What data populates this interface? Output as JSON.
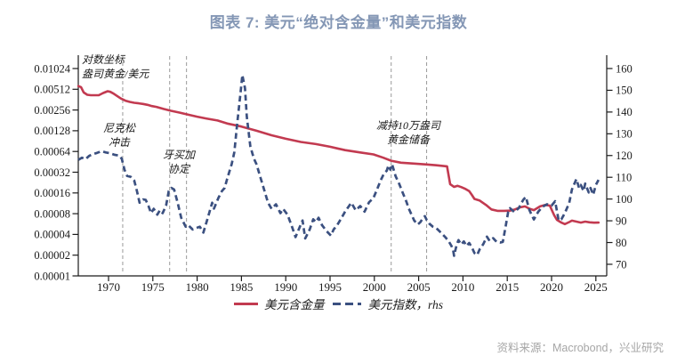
{
  "title": "图表 7: 美元“绝对含金量”和美元指数",
  "source": "资料来源：Macrobond，兴业研究",
  "legend": {
    "gold_content": "美元含金量",
    "usd_index": "美元指数，rhs"
  },
  "annotations": {
    "log_note": {
      "line1": "对数坐标",
      "line2": "盎司黄金/美元"
    },
    "nixon": {
      "line1": "尼克松",
      "line2": "冲击"
    },
    "jamaica": {
      "line1": "牙买加",
      "line2": "协定"
    },
    "gold_sale": {
      "line1": "减持10万盎司",
      "line2": "黄金储备"
    }
  },
  "colors": {
    "gold_content": "#c23a50",
    "usd_index": "#3b5080",
    "event_line": "#999999",
    "title": "#8497b5",
    "source": "#a6a6a6",
    "axis": "#1a1a1a"
  },
  "chart_data": {
    "type": "line",
    "title": "图表 7: 美元“绝对含金量”和美元指数",
    "x_axis": {
      "range": [
        1966.6,
        2026.2
      ],
      "ticks": [
        1970,
        1975,
        1980,
        1985,
        1990,
        1995,
        2000,
        2005,
        2010,
        2015,
        2020,
        2025
      ]
    },
    "left_axis": {
      "label": "盎司黄金/美元",
      "scale": "log2",
      "tick_labels": [
        "0.01024",
        "0.00512",
        "0.00256",
        "0.00128",
        "0.00064",
        "0.00032",
        "0.00016",
        "0.00008",
        "0.00004",
        "0.00002",
        "0.00001"
      ]
    },
    "right_axis": {
      "ticks": [
        160,
        150,
        140,
        130,
        120,
        110,
        100,
        90,
        80,
        70
      ]
    },
    "event_lines": [
      {
        "year": 1971.6,
        "label": "尼克松冲击"
      },
      {
        "year": 1976.9,
        "label": "牙买加协定"
      },
      {
        "year": 1978.8,
        "label": "牙买加协定"
      },
      {
        "year": 2001.9,
        "label": "减持10万盎司黄金储备"
      },
      {
        "year": 2005.9,
        "label": "减持10万盎司黄金储备"
      }
    ],
    "series": [
      {
        "name": "美元含金量",
        "axis": "left",
        "style": "solid",
        "color": "#c23a50",
        "points": [
          [
            1966.6,
            0.0057
          ],
          [
            1966.9,
            0.0055
          ],
          [
            1967.2,
            0.0046
          ],
          [
            1967.6,
            0.00426
          ],
          [
            1968.0,
            0.0042
          ],
          [
            1968.9,
            0.0042
          ],
          [
            1969.4,
            0.00452
          ],
          [
            1969.9,
            0.0048
          ],
          [
            1970.2,
            0.0047
          ],
          [
            1970.6,
            0.0044
          ],
          [
            1970.9,
            0.00415
          ],
          [
            1971.4,
            0.00376
          ],
          [
            1971.9,
            0.0035
          ],
          [
            1972.4,
            0.00336
          ],
          [
            1972.9,
            0.00326
          ],
          [
            1973.4,
            0.0032
          ],
          [
            1973.9,
            0.00313
          ],
          [
            1974.4,
            0.00304
          ],
          [
            1974.9,
            0.00292
          ],
          [
            1975.4,
            0.00284
          ],
          [
            1976.2,
            0.00265
          ],
          [
            1977.0,
            0.0025
          ],
          [
            1978.0,
            0.00235
          ],
          [
            1978.8,
            0.00222
          ],
          [
            1980.0,
            0.00205
          ],
          [
            1981.0,
            0.00193
          ],
          [
            1982.3,
            0.0018
          ],
          [
            1983.4,
            0.00163
          ],
          [
            1985.0,
            0.00147
          ],
          [
            1986.7,
            0.00128
          ],
          [
            1988.4,
            0.0011
          ],
          [
            1990.0,
            0.00098
          ],
          [
            1991.7,
            0.00088
          ],
          [
            1993.4,
            0.00082
          ],
          [
            1995.0,
            0.00075
          ],
          [
            1996.0,
            0.0007
          ],
          [
            1996.7,
            0.00067
          ],
          [
            1998.4,
            0.00062
          ],
          [
            1999.9,
            0.00058
          ],
          [
            2001.0,
            0.00052
          ],
          [
            2001.9,
            0.00047
          ],
          [
            2003.0,
            0.00044
          ],
          [
            2004.3,
            0.000428
          ],
          [
            2005.9,
            0.000414
          ],
          [
            2007.0,
            0.000403
          ],
          [
            2008.2,
            0.00039
          ],
          [
            2008.55,
            0.000215
          ],
          [
            2009.0,
            0.000196
          ],
          [
            2009.4,
            0.000203
          ],
          [
            2009.8,
            0.000195
          ],
          [
            2010.2,
            0.000185
          ],
          [
            2010.7,
            0.00017
          ],
          [
            2011.0,
            0.00015
          ],
          [
            2011.3,
            0.000131
          ],
          [
            2011.9,
            0.000124
          ],
          [
            2012.6,
            0.000107
          ],
          [
            2013.2,
            9.23e-05
          ],
          [
            2013.9,
            8.81e-05
          ],
          [
            2014.6,
            8.81e-05
          ],
          [
            2015.3,
            8.85e-05
          ],
          [
            2015.9,
            9.25e-05
          ],
          [
            2016.4,
            9.85e-05
          ],
          [
            2017.0,
            0.000102
          ],
          [
            2017.5,
            9.45e-05
          ],
          [
            2018.0,
            9e-05
          ],
          [
            2018.7,
            0.000102
          ],
          [
            2019.3,
            0.000107
          ],
          [
            2019.8,
            0.000105
          ],
          [
            2020.3,
            7.57e-05
          ],
          [
            2020.6,
            6.52e-05
          ],
          [
            2021.1,
            5.94e-05
          ],
          [
            2021.5,
            5.65e-05
          ],
          [
            2022.0,
            6.05e-05
          ],
          [
            2022.3,
            6.35e-05
          ],
          [
            2022.8,
            6.14e-05
          ],
          [
            2023.3,
            5.94e-05
          ],
          [
            2023.8,
            6.14e-05
          ],
          [
            2024.3,
            6e-05
          ],
          [
            2024.8,
            5.92e-05
          ],
          [
            2025.3,
            5.94e-05
          ]
        ]
      },
      {
        "name": "美元指数，rhs",
        "axis": "right",
        "style": "dashed",
        "color": "#3b5080",
        "points": [
          [
            1966.6,
            118.0
          ],
          [
            1967.0,
            119.0
          ],
          [
            1967.4,
            118.3
          ],
          [
            1967.8,
            119.8
          ],
          [
            1968.2,
            120.6
          ],
          [
            1968.7,
            121.2
          ],
          [
            1969.2,
            122.0
          ],
          [
            1969.7,
            121.4
          ],
          [
            1970.2,
            121.0
          ],
          [
            1970.7,
            120.3
          ],
          [
            1971.2,
            120.0
          ],
          [
            1971.5,
            118.5
          ],
          [
            1971.8,
            113.5
          ],
          [
            1972.1,
            110.6
          ],
          [
            1972.5,
            110.2
          ],
          [
            1972.9,
            108.5
          ],
          [
            1973.2,
            103.7
          ],
          [
            1973.5,
            98.3
          ],
          [
            1973.9,
            99.8
          ],
          [
            1974.2,
            99.6
          ],
          [
            1974.5,
            96.9
          ],
          [
            1974.8,
            93.5
          ],
          [
            1975.1,
            95.5
          ],
          [
            1975.5,
            92.8
          ],
          [
            1975.8,
            94.9
          ],
          [
            1976.1,
            93.5
          ],
          [
            1976.5,
            97.0
          ],
          [
            1976.8,
            103.7
          ],
          [
            1977.1,
            105.1
          ],
          [
            1977.4,
            104.4
          ],
          [
            1977.8,
            98.3
          ],
          [
            1978.2,
            91.4
          ],
          [
            1978.7,
            87.3
          ],
          [
            1979.0,
            88.0
          ],
          [
            1979.5,
            86.0
          ],
          [
            1980.0,
            86.8
          ],
          [
            1980.3,
            87.3
          ],
          [
            1980.7,
            84.6
          ],
          [
            1981.2,
            91.4
          ],
          [
            1981.7,
            98.3
          ],
          [
            1981.9,
            95.6
          ],
          [
            1982.4,
            100.5
          ],
          [
            1982.8,
            103.7
          ],
          [
            1983.1,
            105.1
          ],
          [
            1983.4,
            109.5
          ],
          [
            1983.9,
            116.0
          ],
          [
            1984.2,
            121.5
          ],
          [
            1984.5,
            133.8
          ],
          [
            1984.9,
            148.9
          ],
          [
            1985.1,
            157.0
          ],
          [
            1985.4,
            150.9
          ],
          [
            1985.6,
            138.0
          ],
          [
            1986.0,
            124.2
          ],
          [
            1986.4,
            118.7
          ],
          [
            1986.7,
            116.0
          ],
          [
            1987.2,
            109.2
          ],
          [
            1987.7,
            102.4
          ],
          [
            1988.0,
            98.3
          ],
          [
            1988.4,
            95.5
          ],
          [
            1988.9,
            97.6
          ],
          [
            1989.4,
            93.5
          ],
          [
            1989.7,
            95.5
          ],
          [
            1990.2,
            92.8
          ],
          [
            1990.7,
            87.3
          ],
          [
            1991.1,
            82.5
          ],
          [
            1991.6,
            87.3
          ],
          [
            1991.9,
            90.1
          ],
          [
            1992.2,
            81.9
          ],
          [
            1992.7,
            86.0
          ],
          [
            1993.1,
            90.7
          ],
          [
            1993.4,
            89.4
          ],
          [
            1993.7,
            91.4
          ],
          [
            1994.1,
            88.0
          ],
          [
            1994.6,
            85.3
          ],
          [
            1995.1,
            83.2
          ],
          [
            1995.4,
            86.0
          ],
          [
            1995.8,
            88.0
          ],
          [
            1996.2,
            90.7
          ],
          [
            1996.7,
            94.2
          ],
          [
            1997.4,
            98.3
          ],
          [
            1997.9,
            94.8
          ],
          [
            1998.4,
            96.8
          ],
          [
            1998.9,
            94.2
          ],
          [
            1999.4,
            98.5
          ],
          [
            1999.9,
            100.5
          ],
          [
            2000.3,
            104.4
          ],
          [
            2000.7,
            108.5
          ],
          [
            2001.1,
            111.9
          ],
          [
            2001.4,
            113.0
          ],
          [
            2001.6,
            115.5
          ],
          [
            2001.8,
            113.5
          ],
          [
            2002.0,
            116.0
          ],
          [
            2002.4,
            110.5
          ],
          [
            2002.8,
            107.0
          ],
          [
            2003.2,
            102.9
          ],
          [
            2003.6,
            98.9
          ],
          [
            2003.9,
            95.5
          ],
          [
            2004.2,
            92.8
          ],
          [
            2004.5,
            90.1
          ],
          [
            2004.9,
            88.3
          ],
          [
            2005.2,
            89.4
          ],
          [
            2005.5,
            91.4
          ],
          [
            2005.7,
            92.1
          ],
          [
            2005.9,
            90.4
          ],
          [
            2006.2,
            88.7
          ],
          [
            2006.6,
            87.3
          ],
          [
            2007.0,
            86.6
          ],
          [
            2007.5,
            84.6
          ],
          [
            2008.0,
            82.5
          ],
          [
            2008.4,
            80.5
          ],
          [
            2008.7,
            78.4
          ],
          [
            2008.9,
            76.4
          ],
          [
            2009.0,
            73.9
          ],
          [
            2009.3,
            79.1
          ],
          [
            2009.5,
            81.1
          ],
          [
            2009.8,
            79.1
          ],
          [
            2010.1,
            80.5
          ],
          [
            2010.4,
            78.4
          ],
          [
            2010.7,
            79.8
          ],
          [
            2011.0,
            77.8
          ],
          [
            2011.3,
            75.2
          ],
          [
            2011.6,
            74.3
          ],
          [
            2011.9,
            77.0
          ],
          [
            2012.3,
            79.3
          ],
          [
            2012.7,
            82.7
          ],
          [
            2013.0,
            80.8
          ],
          [
            2013.4,
            82.0
          ],
          [
            2013.8,
            80.3
          ],
          [
            2014.2,
            80.0
          ],
          [
            2014.5,
            80.3
          ],
          [
            2014.8,
            87.0
          ],
          [
            2015.1,
            94.0
          ],
          [
            2015.3,
            95.8
          ],
          [
            2015.8,
            94.0
          ],
          [
            2016.3,
            95.8
          ],
          [
            2016.8,
            99.6
          ],
          [
            2017.1,
            101.0
          ],
          [
            2017.5,
            94.9
          ],
          [
            2018.0,
            90.6
          ],
          [
            2018.5,
            94.2
          ],
          [
            2019.0,
            96.5
          ],
          [
            2019.5,
            97.6
          ],
          [
            2020.0,
            97.0
          ],
          [
            2020.4,
            99.0
          ],
          [
            2020.8,
            90.1
          ],
          [
            2021.1,
            90.7
          ],
          [
            2021.5,
            93.5
          ],
          [
            2022.0,
            98.3
          ],
          [
            2022.3,
            104.4
          ],
          [
            2022.8,
            109.2
          ],
          [
            2023.1,
            105.1
          ],
          [
            2023.3,
            106.5
          ],
          [
            2023.6,
            103.7
          ],
          [
            2023.8,
            107.1
          ],
          [
            2024.2,
            103.0
          ],
          [
            2024.4,
            105.1
          ],
          [
            2024.7,
            102.0
          ],
          [
            2025.0,
            106.5
          ],
          [
            2025.3,
            108.8
          ]
        ]
      }
    ]
  }
}
